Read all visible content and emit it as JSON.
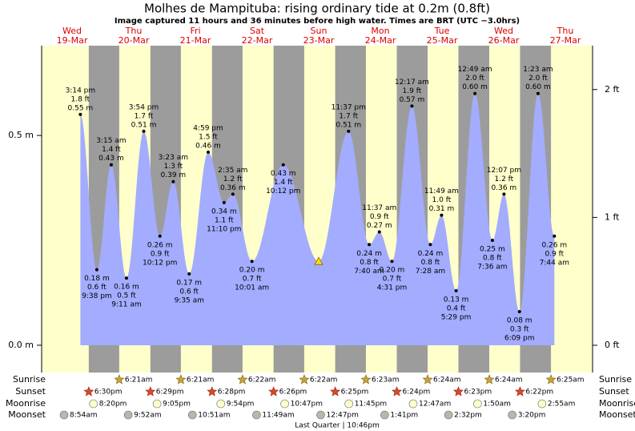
{
  "chart_data": {
    "type": "tide",
    "title": "Molhes de Mampituba: rising  ordinary tide at 0.2m (0.8ft)",
    "subtitle": "Image captured 11 hours and 36 minutes before high water. Times are BRT (UTC −3.0hrs)",
    "ylim": [
      -0.065,
      0.714
    ],
    "yticks": [
      {
        "value": 0,
        "label": "0.0 m"
      },
      {
        "value": 0.5,
        "label": "0.5 m"
      }
    ],
    "y2lim": [
      -0.213,
      2.343
    ],
    "y2ticks": [
      {
        "value": 0,
        "label": "0 ft"
      },
      {
        "value": 1,
        "label": "1 ft"
      },
      {
        "value": 2,
        "label": "2 ft"
      }
    ],
    "colors": {
      "day": "#ffffcc",
      "night": "#9c9c9c",
      "water": "#a3acff",
      "day_label": "#dd0000"
    },
    "now": {
      "value": 0.2
    },
    "row_labels": [
      "Sunrise",
      "Sunset",
      "Moonrise",
      "Moonset"
    ],
    "moon_phase": "Last Quarter | 10:46pm",
    "days": [
      {
        "weekday": "Wed",
        "date": "19-Mar",
        "sunset": "6:30pm",
        "moonrise": "8:20pm",
        "moonset": "8:54am",
        "tides": [
          {
            "time": "3:14 pm",
            "ft": "1.8 ft",
            "m": "0.55 m",
            "value": 0.55
          },
          {
            "time": "9:38 pm",
            "ft": "0.6 ft",
            "m": "0.18 m",
            "value": 0.18
          }
        ]
      },
      {
        "weekday": "Thu",
        "date": "20-Mar",
        "sunrise": "6:21am",
        "sunset": "6:29pm",
        "moonrise": "9:05pm",
        "moonset": "9:52am",
        "tides": [
          {
            "time": "3:15 am",
            "ft": "1.4 ft",
            "m": "0.43 m",
            "value": 0.43
          },
          {
            "time": "9:11 am",
            "ft": "0.5 ft",
            "m": "0.16 m",
            "value": 0.16
          },
          {
            "time": "3:54 pm",
            "ft": "1.7 ft",
            "m": "0.51 m",
            "value": 0.51
          },
          {
            "time": "10:12 pm",
            "ft": "0.9 ft",
            "m": "0.26 m",
            "value": 0.26
          }
        ]
      },
      {
        "weekday": "Fri",
        "date": "21-Mar",
        "sunrise": "6:21am",
        "sunset": "6:28pm",
        "moonrise": "9:54pm",
        "moonset": "10:51am",
        "tides": [
          {
            "time": "3:23 am",
            "ft": "1.3 ft",
            "m": "0.39 m",
            "value": 0.39
          },
          {
            "time": "9:35 am",
            "ft": "0.6 ft",
            "m": "0.17 m",
            "value": 0.17
          },
          {
            "time": "4:59 pm",
            "ft": "1.5 ft",
            "m": "0.46 m",
            "value": 0.46
          },
          {
            "time": "11:10 pm",
            "ft": "1.1 ft",
            "m": "0.34 m",
            "value": 0.34
          }
        ]
      },
      {
        "weekday": "Sat",
        "date": "22-Mar",
        "sunrise": "6:22am",
        "sunset": "6:26pm",
        "moonrise": "10:47pm",
        "moonset": "11:49am",
        "tides": [
          {
            "time": "2:35 am",
            "ft": "1.2 ft",
            "m": "0.36 m",
            "value": 0.36
          },
          {
            "time": "10:01 am",
            "ft": "0.7 ft",
            "m": "0.20 m",
            "value": 0.2
          },
          {
            "time": "10:12 pm",
            "ft": "1.4 ft",
            "m": "0.43 m",
            "value": 0.43
          }
        ]
      },
      {
        "weekday": "Sun",
        "date": "23-Mar",
        "sunrise": "6:22am",
        "sunset": "6:25pm",
        "moonrise": "11:45pm",
        "moonset": "12:47pm",
        "tides": [
          {
            "time": "11:37 pm",
            "ft": "1.7 ft",
            "m": "0.51 m",
            "value": 0.51
          }
        ]
      },
      {
        "weekday": "Mon",
        "date": "24-Mar",
        "sunrise": "6:23am",
        "sunset": "6:24pm",
        "moonset": "1:41pm",
        "tides": [
          {
            "time": "7:40 am",
            "ft": "0.8 ft",
            "m": "0.24 m",
            "value": 0.24
          },
          {
            "time": "11:37 am",
            "ft": "0.9 ft",
            "m": "0.27 m",
            "value": 0.27
          },
          {
            "time": "4:31 pm",
            "ft": "0.7 ft",
            "m": "0.20 m",
            "value": 0.2
          }
        ]
      },
      {
        "weekday": "Tue",
        "date": "25-Mar",
        "sunrise": "6:24am",
        "sunset": "6:23pm",
        "moonrise": "12:47am",
        "moonset": "2:32pm",
        "tides": [
          {
            "time": "12:17 am",
            "ft": "1.9 ft",
            "m": "0.57 m",
            "value": 0.57
          },
          {
            "time": "7:28 am",
            "ft": "0.8 ft",
            "m": "0.24 m",
            "value": 0.24
          },
          {
            "time": "11:49 am",
            "ft": "1.0 ft",
            "m": "0.31 m",
            "value": 0.31
          },
          {
            "time": "5:29 pm",
            "ft": "0.4 ft",
            "m": "0.13 m",
            "value": 0.13
          }
        ]
      },
      {
        "weekday": "Wed",
        "date": "26-Mar",
        "sunrise": "6:24am",
        "sunset": "6:22pm",
        "moonrise": "1:50am",
        "moonset": "3:20pm",
        "tides": [
          {
            "time": "12:49 am",
            "ft": "2.0 ft",
            "m": "0.60 m",
            "value": 0.6
          },
          {
            "time": "7:36 am",
            "ft": "0.8 ft",
            "m": "0.25 m",
            "value": 0.25
          },
          {
            "time": "12:07 pm",
            "ft": "1.2 ft",
            "m": "0.36 m",
            "value": 0.36
          },
          {
            "time": "6:09 pm",
            "ft": "0.3 ft",
            "m": "0.08 m",
            "value": 0.08
          }
        ]
      },
      {
        "weekday": "Thu",
        "date": "27-Mar",
        "sunrise": "6:25am",
        "moonrise": "2:55am",
        "tides": [
          {
            "time": "1:23 am",
            "ft": "2.0 ft",
            "m": "0.60 m",
            "value": 0.6
          },
          {
            "time": "7:44 am",
            "ft": "0.9 ft",
            "m": "0.26 m",
            "value": 0.26
          }
        ]
      }
    ]
  }
}
